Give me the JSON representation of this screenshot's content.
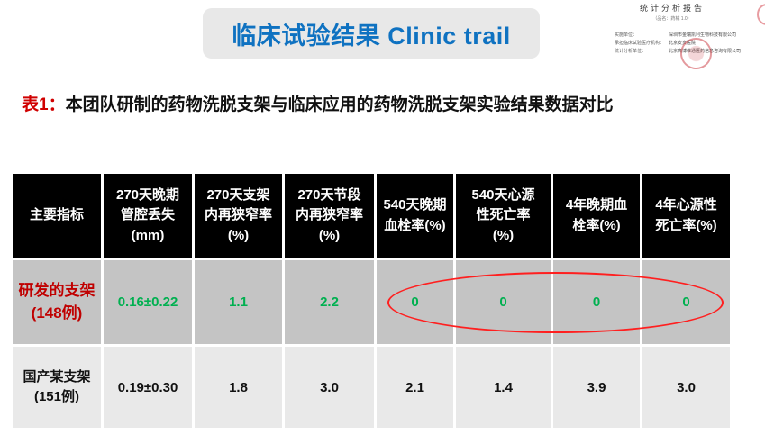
{
  "title": {
    "text": "临床试验结果 Clinic trail"
  },
  "report_thumbnail": {
    "title": "统计分析报告",
    "subtitle": "（品名：药械 1.0）",
    "lines": [
      {
        "label": "实施单位：",
        "value": "深圳市金瑞凯利生物科技有限公司"
      },
      {
        "label": "承担临床试验医疗机构：",
        "value": "北京安贞医院"
      },
      {
        "label": "统计分析单位：",
        "value": "北京高博维通医药信息咨询有限公司"
      }
    ],
    "stamp": "red-circular-seal"
  },
  "caption": {
    "prefix": "表1：",
    "text": "本团队研制的药物洗脱支架与临床应用的药物洗脱支架实验结果数据对比"
  },
  "table": {
    "headers": [
      "主要指标",
      "270天晚期\n管腔丢失\n(mm)",
      "270天支架\n内再狭窄率\n(%)",
      "270天节段\n内再狭窄率\n(%)",
      "540天晚期\n血栓率(%)",
      "540天心源\n性死亡率\n(%)",
      "4年晚期血\n栓率(%)",
      "4年心源性\n死亡率(%)"
    ],
    "rows": [
      {
        "label": "研发的支架\n(148例)",
        "values": [
          "0.16±0.22",
          "1.1",
          "2.2",
          "0",
          "0",
          "0",
          "0"
        ]
      },
      {
        "label": "国产某支架\n(151例)",
        "values": [
          "0.19±0.30",
          "1.8",
          "3.0",
          "2.1",
          "1.4",
          "3.9",
          "3.0"
        ]
      }
    ],
    "highlight": "red ellipse around the four zero values of row 1 (columns 540天晚期血栓率 through 4年心源性死亡率)"
  },
  "colors": {
    "title_blue": "#0F72C1",
    "title_box_gray": "#E8E8E8",
    "caption_red": "#D00000",
    "header_bg": "#000000",
    "row1_bg": "#C4C4C4",
    "row2_bg": "#E9E9E9",
    "row1_label_red": "#C00000",
    "value_green": "#00B050",
    "ellipse_red": "#FF1F1F"
  },
  "chart_data": {
    "type": "table",
    "title": "表1：本团队研制的药物洗脱支架与临床应用的药物洗脱支架实验结果数据对比",
    "columns": [
      "主要指标",
      "270天晚期管腔丢失 (mm)",
      "270天支架内再狭窄率 (%)",
      "270天节段内再狭窄率 (%)",
      "540天晚期血栓率 (%)",
      "540天心源性死亡率 (%)",
      "4年晚期血栓率 (%)",
      "4年心源性死亡率 (%)"
    ],
    "rows": [
      [
        "研发的支架 (148例)",
        "0.16±0.22",
        1.1,
        2.2,
        0,
        0,
        0,
        0
      ],
      [
        "国产某支架 (151例)",
        "0.19±0.30",
        1.8,
        3.0,
        2.1,
        1.4,
        3.9,
        3.0
      ]
    ]
  }
}
